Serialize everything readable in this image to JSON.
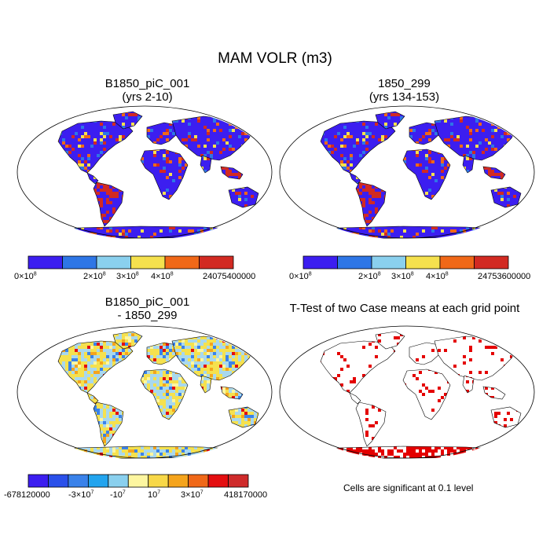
{
  "figure": {
    "title": "MAM VOLR (m3)"
  },
  "panels": {
    "top_left": {
      "title_line1": "B1850_piC_001",
      "title_line2": "(yrs 2-10)"
    },
    "top_right": {
      "title_line1": "1850_299",
      "title_line2": "(yrs 134-153)"
    },
    "bottom_left": {
      "title_line1": "B1850_piC_001",
      "title_line2": "- 1850_299"
    },
    "bottom_right": {
      "title_line1": "T-Test of two Case means at each grid point",
      "note": "Cells are significant at 0.1 level"
    }
  },
  "colorbars": {
    "top_left": {
      "colors": [
        "#3c1ef0",
        "#2e76e6",
        "#8ad0ee",
        "#f5e14e",
        "#f06818",
        "#d22a22"
      ],
      "labels": [
        {
          "mant": "0×10",
          "exp": "8"
        },
        {
          "mant": "2×10",
          "exp": "8"
        },
        {
          "mant": "3×10",
          "exp": "8"
        },
        {
          "mant": "4×10",
          "exp": "8"
        },
        {
          "mant": "24075400000",
          "exp": ""
        }
      ]
    },
    "top_right": {
      "colors": [
        "#3c1ef0",
        "#2e76e6",
        "#8ad0ee",
        "#f5e14e",
        "#f06818",
        "#d22a22"
      ],
      "labels": [
        {
          "mant": "0×10",
          "exp": "8"
        },
        {
          "mant": "2×10",
          "exp": "8"
        },
        {
          "mant": "3×10",
          "exp": "8"
        },
        {
          "mant": "4×10",
          "exp": "8"
        },
        {
          "mant": "24753600000",
          "exp": ""
        }
      ]
    },
    "bottom_left": {
      "colors": [
        "#3c1ef0",
        "#2a50ea",
        "#3a82ea",
        "#22a4ee",
        "#8ad0ee",
        "#fdf6a0",
        "#f8d848",
        "#f5a41c",
        "#f06818",
        "#e40e10",
        "#cf2b2b"
      ],
      "labels": [
        {
          "mant": "-678120000",
          "exp": ""
        },
        {
          "mant": "-3×10",
          "exp": "7"
        },
        {
          "mant": "-10",
          "exp": "7"
        },
        {
          "mant": "10",
          "exp": "7"
        },
        {
          "mant": "3×10",
          "exp": "7"
        },
        {
          "mant": "418170000",
          "exp": ""
        }
      ]
    }
  },
  "map_colors": {
    "land_low": "#3c1ef0",
    "land_high": "#d22a22",
    "diff_land": "#a8d8ee",
    "diff_pos": "#f5e14e",
    "signif": "#e40000",
    "outline": "#000000",
    "ocean": "#ffffff"
  }
}
